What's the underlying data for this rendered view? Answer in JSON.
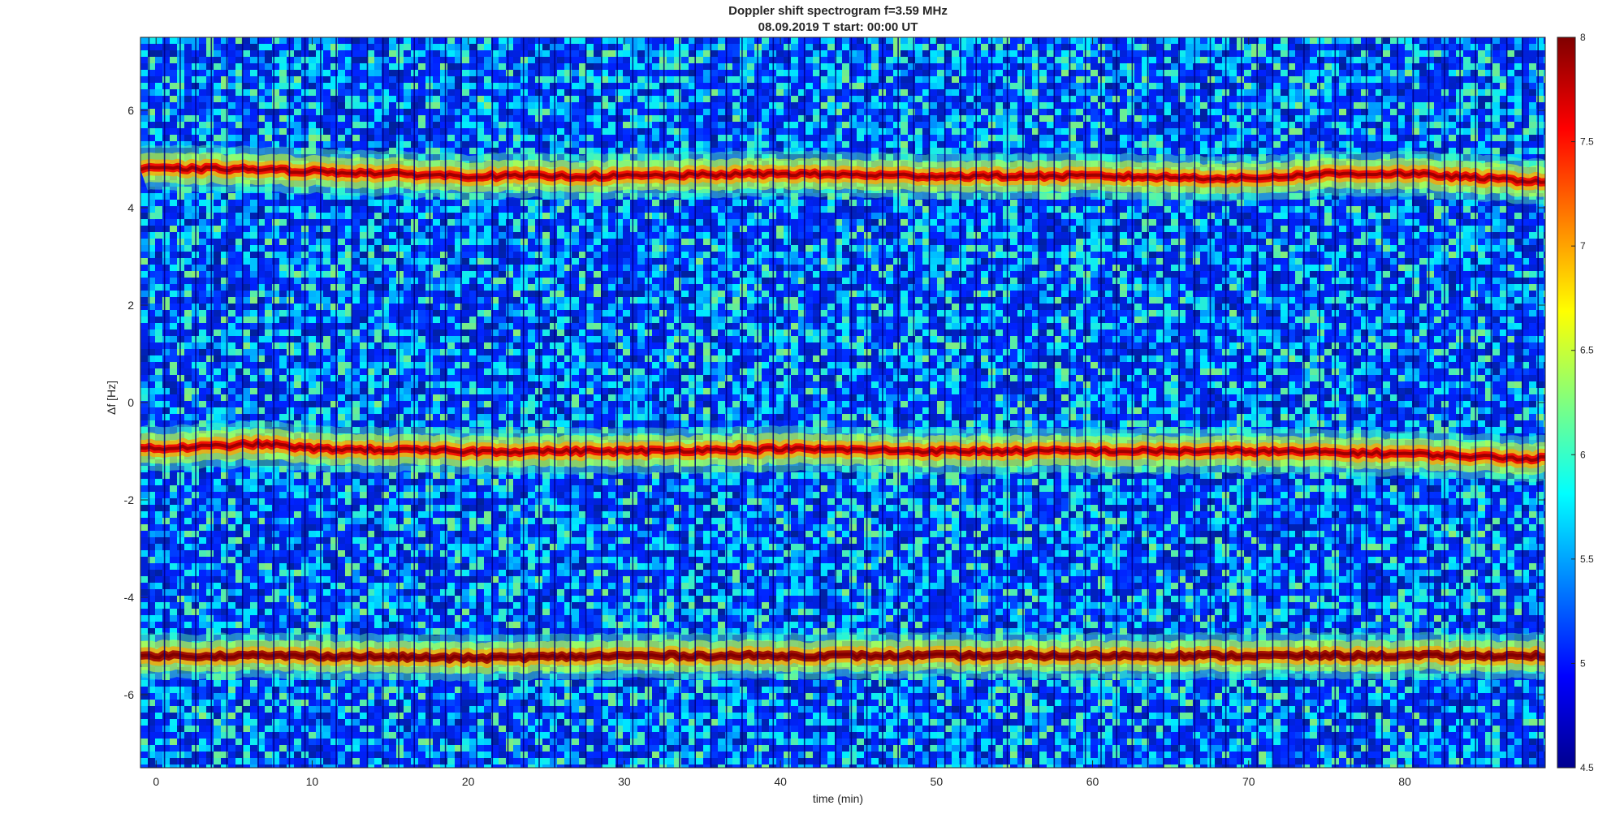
{
  "chart_data": {
    "type": "heatmap",
    "title": "Doppler shift spectrogram f=3.59 MHz",
    "subtitle": "08.09.2019   T start: 00:00 UT",
    "xlabel": "time (min)",
    "ylabel": "Δf [Hz]",
    "xlim": [
      -1,
      89
    ],
    "ylim": [
      -7.5,
      7.5
    ],
    "xticks": [
      0,
      10,
      20,
      30,
      40,
      50,
      60,
      70,
      80
    ],
    "yticks": [
      -6,
      -4,
      -2,
      0,
      2,
      4,
      6
    ],
    "colorbar": {
      "colormap": "jet",
      "clim": [
        4.5,
        8
      ],
      "ticks": [
        4.5,
        5,
        5.5,
        6,
        6.5,
        7,
        7.5,
        8
      ],
      "position": "right"
    },
    "background_level": 5.5,
    "traces": [
      {
        "x": [
          0,
          5,
          10,
          15,
          20,
          30,
          40,
          50,
          60,
          70,
          75,
          80,
          88
        ],
        "y": [
          4.8,
          4.8,
          4.75,
          4.7,
          4.65,
          4.65,
          4.7,
          4.65,
          4.65,
          4.6,
          4.7,
          4.7,
          4.55
        ],
        "level": 7.6
      },
      {
        "x": [
          0,
          7,
          10,
          20,
          30,
          40,
          50,
          60,
          70,
          80,
          88
        ],
        "y": [
          -0.95,
          -0.85,
          -0.95,
          -1.0,
          -1.0,
          -0.95,
          -1.0,
          -1.0,
          -1.0,
          -1.05,
          -1.15
        ],
        "level": 7.6
      },
      {
        "x": [
          0,
          10,
          20,
          30,
          40,
          50,
          60,
          70,
          80,
          88
        ],
        "y": [
          -5.2,
          -5.2,
          -5.25,
          -5.2,
          -5.2,
          -5.2,
          -5.2,
          -5.2,
          -5.2,
          -5.2
        ],
        "level": 7.9
      }
    ],
    "grid": false
  }
}
